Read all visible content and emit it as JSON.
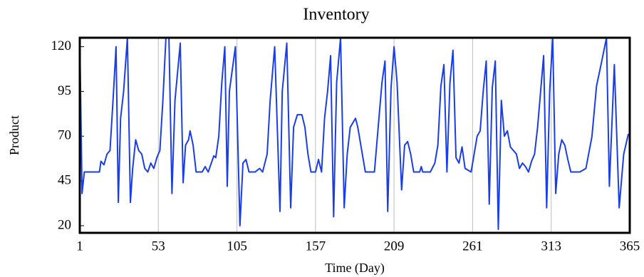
{
  "chart_data": {
    "type": "line",
    "title": "Inventory",
    "x_label": "Time (Day)",
    "y_label": "Product",
    "color": "#1a3ee6",
    "grid": true,
    "xlim": [
      1,
      365
    ],
    "xticks": [
      1,
      53,
      105,
      157,
      209,
      261,
      313,
      365
    ],
    "ylim": [
      16,
      125
    ],
    "yticks": [
      20,
      45,
      70,
      95,
      120
    ],
    "x": [
      1,
      2.5,
      4,
      8,
      14,
      15,
      17,
      19,
      21,
      23,
      25,
      26.5,
      28,
      30,
      32.5,
      34.5,
      36,
      38,
      40,
      42,
      44,
      46,
      48,
      50,
      52,
      54,
      56,
      58,
      60,
      62,
      64,
      67.5,
      69.4,
      71,
      73,
      74,
      76,
      78,
      82,
      84,
      86,
      89.7,
      91,
      93,
      95,
      97,
      98.6,
      100,
      104,
      107,
      109,
      111,
      113,
      117,
      120,
      122,
      125,
      127,
      130,
      133.5,
      135,
      138,
      140.6,
      142.5,
      145,
      148,
      150,
      152,
      154,
      157,
      159,
      161,
      163,
      165,
      167,
      169,
      171,
      173.6,
      176,
      178,
      180,
      183.5,
      185,
      188,
      190,
      196,
      198,
      201,
      203,
      204.8,
      207,
      209,
      211,
      214,
      216,
      218,
      220,
      222,
      226,
      227,
      228,
      233,
      236,
      238,
      240,
      242,
      244,
      246,
      248,
      250,
      252,
      254,
      256,
      260,
      264,
      266,
      268,
      270,
      272,
      274,
      276,
      278,
      280,
      282,
      284,
      286,
      290,
      292,
      294,
      296,
      298,
      300,
      302,
      304,
      306,
      308,
      310,
      312,
      314,
      316,
      318,
      320,
      322,
      324,
      326,
      332,
      336,
      340,
      343,
      346,
      349.6,
      351.5,
      354.8,
      358,
      361,
      364,
      365
    ],
    "values": [
      125,
      38,
      50,
      50,
      50,
      56,
      54,
      60,
      62,
      90,
      120,
      33,
      80,
      95,
      125,
      33,
      52,
      68,
      62,
      60,
      52,
      50,
      55,
      52,
      58,
      62,
      90,
      125,
      125,
      38,
      90,
      122,
      44,
      65,
      68,
      73,
      65,
      50,
      50,
      53,
      50,
      59,
      58,
      70,
      100,
      120,
      42,
      95,
      120,
      20,
      55,
      57,
      50,
      50,
      52,
      50,
      60,
      90,
      120,
      28,
      95,
      122,
      30,
      75,
      82,
      82,
      75,
      60,
      50,
      50,
      57,
      50,
      80,
      95,
      115,
      25,
      100,
      125,
      30,
      60,
      75,
      80,
      75,
      60,
      50,
      50,
      70,
      100,
      112,
      28,
      97,
      120,
      100,
      40,
      65,
      67,
      60,
      50,
      50,
      53,
      50,
      50,
      55,
      65,
      98,
      110,
      50,
      100,
      118,
      58,
      55,
      64,
      52,
      50,
      70,
      73,
      95,
      112,
      32,
      97,
      112,
      18,
      90,
      70,
      73,
      64,
      60,
      52,
      55,
      53,
      50,
      56,
      60,
      75,
      95,
      115,
      30,
      95,
      125,
      38,
      60,
      68,
      65,
      57,
      50,
      50,
      52,
      70,
      98,
      110,
      125,
      42,
      110,
      30,
      60,
      71,
      70
    ]
  }
}
